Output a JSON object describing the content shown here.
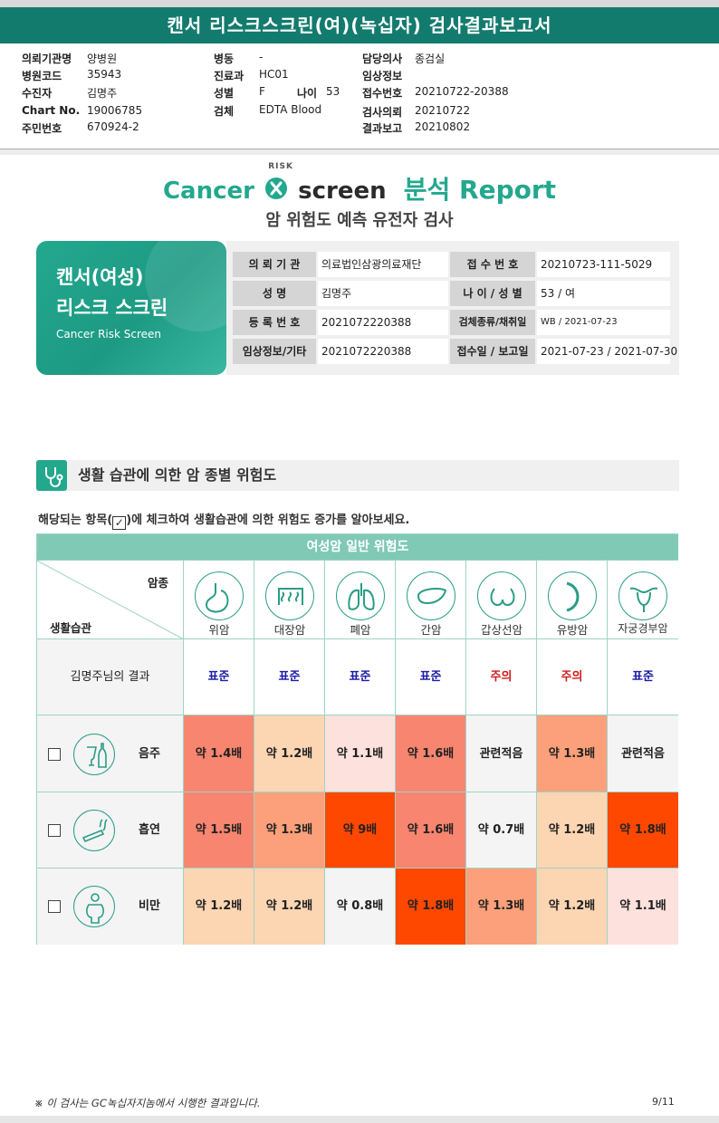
{
  "report_title": "캔서 리스크스크린(여)(녹십자) 검사결과보고서",
  "patient_info": {
    "col1": [
      {
        "label": "의뢰기관명",
        "value": "양병원"
      },
      {
        "label": "병원코드",
        "value": "35943"
      },
      {
        "label": "수진자",
        "value": "김명주"
      },
      {
        "label": "Chart No.",
        "value": "19006785"
      },
      {
        "label": "주민번호",
        "value": "670924-2"
      }
    ],
    "col2": [
      {
        "label": "병동",
        "value": "-"
      },
      {
        "label": "진료과",
        "value": "HC01"
      },
      {
        "label": "성별",
        "value": "F"
      },
      {
        "label": "검체",
        "value": "EDTA Blood"
      }
    ],
    "age_label": "나이",
    "age_value": "53",
    "col3": [
      {
        "label": "담당의사",
        "value": "종검실"
      },
      {
        "label": "임상정보",
        "value": ""
      },
      {
        "label": "접수번호",
        "value": "20210722-20388"
      },
      {
        "label": "검사의뢰",
        "value": "20210722"
      },
      {
        "label": "결과보고",
        "value": "20210802"
      }
    ]
  },
  "logo": {
    "cancer": "Cancer",
    "risk": "RISK",
    "screen": "screen",
    "report": "분석 Report"
  },
  "subtitle": "암 위험도 예측 유전자 검사",
  "card": {
    "line1": "캔서(여성)",
    "line2": "리스크 스크린",
    "line3": "Cancer Risk Screen"
  },
  "summary_table": [
    {
      "label": "의 뢰 기 관",
      "value": "의료법인삼광의료재단",
      "label2": "접 수 번 호",
      "value2": "20210723-111-5029"
    },
    {
      "label": "성          명",
      "value": "김명주",
      "label2": "나 이 / 성 별",
      "value2": "53 / 여"
    },
    {
      "label": "등 록 번 호",
      "value": "2021072220388",
      "label2": "검체종류/채취일",
      "value2": "WB / 2021-07-23"
    },
    {
      "label": "임상정보/기타",
      "value": "2021072220388",
      "label2": "접수일 / 보고일",
      "value2": "2021-07-23 / 2021-07-30"
    }
  ],
  "section_title": "생활 습관에 의한 암 종별 위험도",
  "instruction_pre": "해당되는 항목(",
  "instruction_check": "✓",
  "instruction_post": ")에 체크하여 생활습관에 의한 위험도 증가를 알아보세요.",
  "risk_table": {
    "header": "여성암 일반 위험도",
    "corner_top": "암종",
    "corner_bottom": "생활습관",
    "cancers": [
      {
        "name": "위암",
        "icon": "stomach-icon"
      },
      {
        "name": "대장암",
        "icon": "colon-icon"
      },
      {
        "name": "폐암",
        "icon": "lung-icon"
      },
      {
        "name": "간암",
        "icon": "liver-icon"
      },
      {
        "name": "갑상선암",
        "icon": "thyroid-icon"
      },
      {
        "name": "유방암",
        "icon": "breast-icon"
      },
      {
        "name": "자궁경부암",
        "icon": "uterus-icon"
      }
    ],
    "result_label": "김명주님의 결과",
    "results": [
      "표준",
      "표준",
      "표준",
      "표준",
      "주의",
      "주의",
      "표준"
    ],
    "result_colors": {
      "표준": "#1a1aa6",
      "주의": "#d0191b"
    },
    "habits": [
      {
        "name": "음주",
        "icon": "alcohol-icon",
        "values": [
          "약 1.4배",
          "약 1.2배",
          "약 1.1배",
          "약 1.6배",
          "관련적음",
          "약 1.3배",
          "관련적음"
        ],
        "colors": [
          "#f7856f",
          "#fcd5b3",
          "#fde1dd",
          "#f7856f",
          "#f4f4f4",
          "#fba07a",
          "#f4f4f4"
        ]
      },
      {
        "name": "흡연",
        "icon": "smoking-icon",
        "values": [
          "약 1.5배",
          "약 1.3배",
          "약 9배",
          "약 1.6배",
          "약 0.7배",
          "약 1.2배",
          "약 1.8배"
        ],
        "colors": [
          "#f7856f",
          "#fba07a",
          "#fe4800",
          "#f7856f",
          "#f4f4f4",
          "#fcd5b3",
          "#fe4800"
        ]
      },
      {
        "name": "비만",
        "icon": "obesity-icon",
        "values": [
          "약 1.2배",
          "약 1.2배",
          "약 0.8배",
          "약 1.8배",
          "약 1.3배",
          "약 1.2배",
          "약 1.1배"
        ],
        "colors": [
          "#fcd5b3",
          "#fcd5b3",
          "#f4f4f4",
          "#fe4800",
          "#fba07a",
          "#fcd5b3",
          "#fde1dd"
        ]
      }
    ]
  },
  "footer_note": "※ 이 검사는 GC녹십자지놈에서 시행한 결과입니다.",
  "page_number": "9/11"
}
